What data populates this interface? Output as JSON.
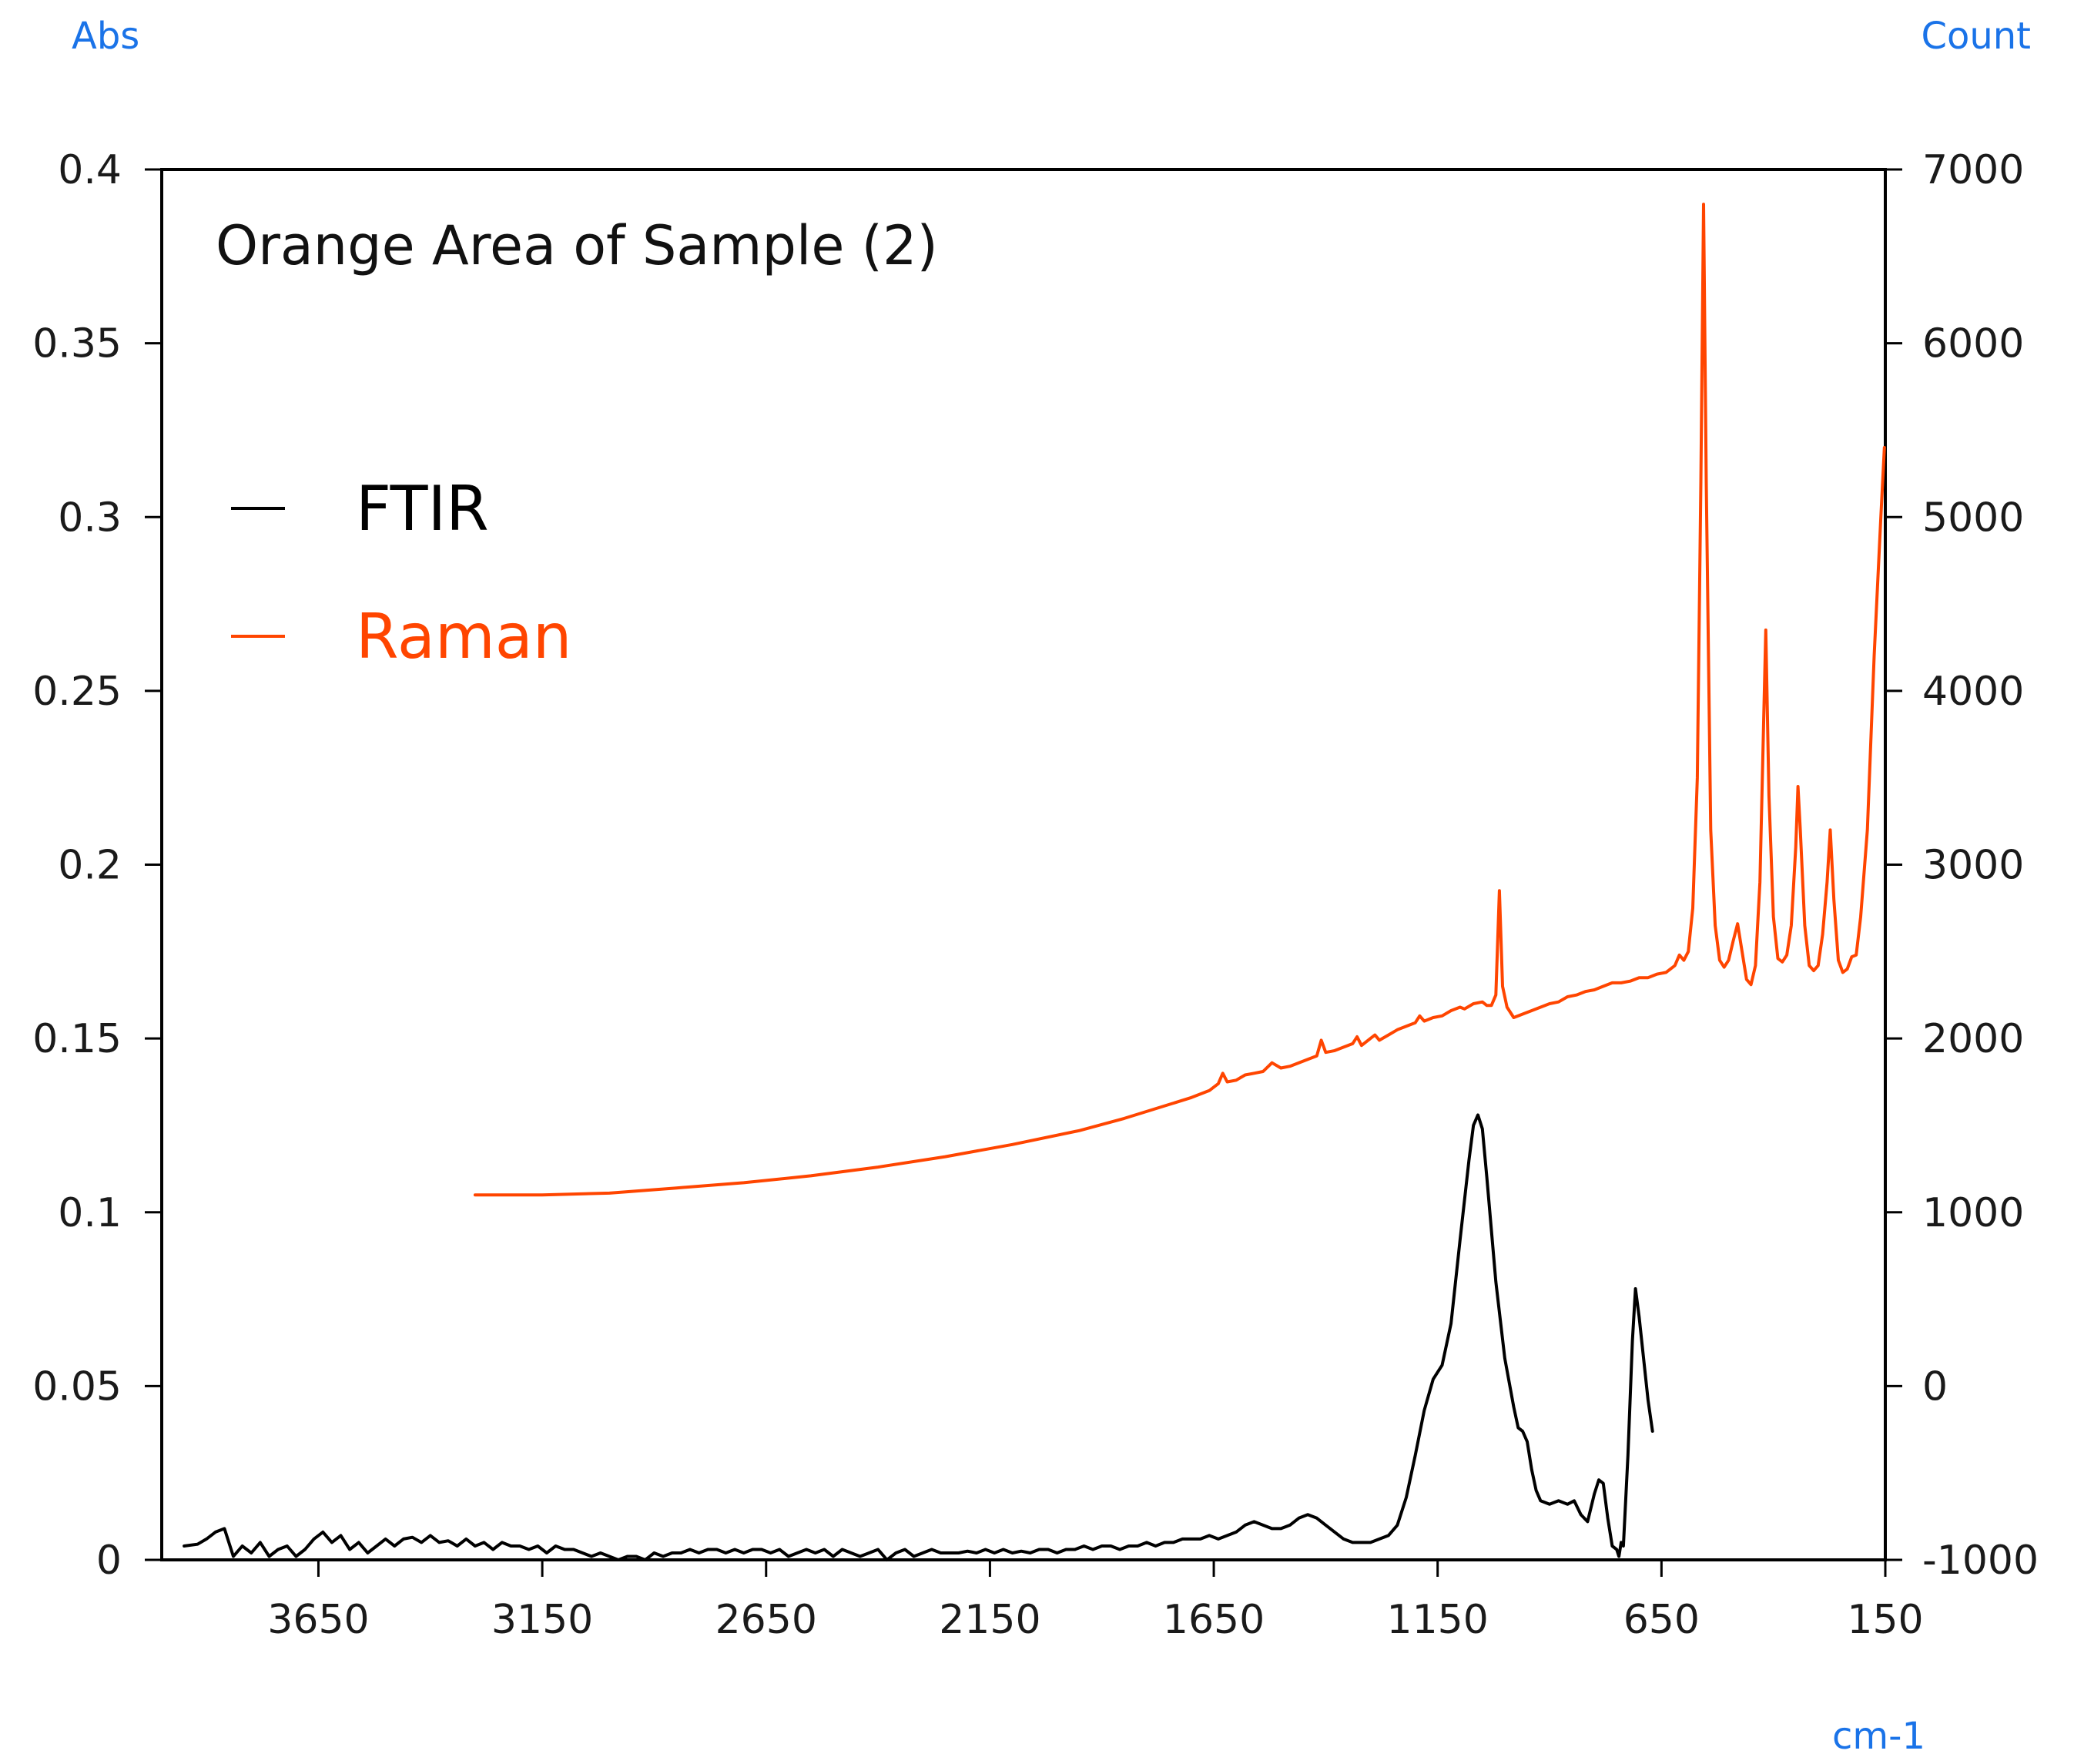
{
  "chart_data": {
    "type": "line",
    "title": "Orange Area of Sample (2)",
    "xlabel": "cm-1",
    "ylabel_left": "Abs",
    "ylabel_right": "Count",
    "x_range": [
      4000,
      150
    ],
    "x_reversed": true,
    "y_left_range": [
      0,
      0.4
    ],
    "y_right_range": [
      -1000,
      7000
    ],
    "x_ticks": [
      3650,
      3150,
      2650,
      2150,
      1650,
      1150,
      650,
      150
    ],
    "x_tick_labels": [
      "3650",
      "3150",
      "2650",
      "2150",
      "1650",
      "1150",
      "650",
      "150"
    ],
    "y_left_ticks": [
      0,
      0.05,
      0.1,
      0.15,
      0.2,
      0.25,
      0.3,
      0.35,
      0.4
    ],
    "y_left_tick_labels": [
      "0",
      "0.05",
      "0.1",
      "0.15",
      "0.2",
      "0.25",
      "0.3",
      "0.35",
      "0.4"
    ],
    "y_right_ticks": [
      -1000,
      0,
      1000,
      2000,
      3000,
      4000,
      5000,
      6000,
      7000
    ],
    "y_right_tick_labels": [
      "-1000",
      "0",
      "1000",
      "2000",
      "3000",
      "4000",
      "5000",
      "6000",
      "7000"
    ],
    "grid": false,
    "legend_position": "upper-left",
    "colors": {
      "ftir": "#000000",
      "raman": "#ff4500",
      "axis_units": "#1a73e8"
    },
    "series": [
      {
        "name": "FTIR",
        "axis": "left",
        "color": "#000000",
        "points": [
          [
            3950,
            0.004
          ],
          [
            3920,
            0.0045
          ],
          [
            3900,
            0.006
          ],
          [
            3880,
            0.008
          ],
          [
            3860,
            0.009
          ],
          [
            3840,
            0.001
          ],
          [
            3820,
            0.004
          ],
          [
            3800,
            0.002
          ],
          [
            3780,
            0.005
          ],
          [
            3760,
            0.001
          ],
          [
            3740,
            0.003
          ],
          [
            3720,
            0.004
          ],
          [
            3700,
            0.001
          ],
          [
            3680,
            0.003
          ],
          [
            3660,
            0.006
          ],
          [
            3640,
            0.008
          ],
          [
            3620,
            0.005
          ],
          [
            3600,
            0.007
          ],
          [
            3580,
            0.003
          ],
          [
            3560,
            0.005
          ],
          [
            3540,
            0.002
          ],
          [
            3520,
            0.004
          ],
          [
            3500,
            0.006
          ],
          [
            3480,
            0.004
          ],
          [
            3460,
            0.006
          ],
          [
            3440,
            0.0065
          ],
          [
            3420,
            0.005
          ],
          [
            3400,
            0.007
          ],
          [
            3380,
            0.005
          ],
          [
            3360,
            0.0055
          ],
          [
            3340,
            0.004
          ],
          [
            3320,
            0.006
          ],
          [
            3300,
            0.004
          ],
          [
            3280,
            0.005
          ],
          [
            3260,
            0.003
          ],
          [
            3240,
            0.005
          ],
          [
            3220,
            0.004
          ],
          [
            3200,
            0.004
          ],
          [
            3180,
            0.003
          ],
          [
            3160,
            0.004
          ],
          [
            3140,
            0.002
          ],
          [
            3120,
            0.004
          ],
          [
            3100,
            0.003
          ],
          [
            3080,
            0.003
          ],
          [
            3060,
            0.002
          ],
          [
            3040,
            0.001
          ],
          [
            3020,
            0.002
          ],
          [
            3000,
            0.001
          ],
          [
            2980,
            0.0
          ],
          [
            2960,
            0.001
          ],
          [
            2940,
            0.001
          ],
          [
            2920,
            0.0
          ],
          [
            2900,
            0.002
          ],
          [
            2880,
            0.001
          ],
          [
            2860,
            0.002
          ],
          [
            2840,
            0.002
          ],
          [
            2820,
            0.003
          ],
          [
            2800,
            0.002
          ],
          [
            2780,
            0.003
          ],
          [
            2760,
            0.003
          ],
          [
            2740,
            0.002
          ],
          [
            2720,
            0.003
          ],
          [
            2700,
            0.002
          ],
          [
            2680,
            0.003
          ],
          [
            2660,
            0.003
          ],
          [
            2640,
            0.002
          ],
          [
            2620,
            0.003
          ],
          [
            2600,
            0.001
          ],
          [
            2580,
            0.002
          ],
          [
            2560,
            0.003
          ],
          [
            2540,
            0.002
          ],
          [
            2520,
            0.003
          ],
          [
            2500,
            0.001
          ],
          [
            2480,
            0.003
          ],
          [
            2460,
            0.002
          ],
          [
            2440,
            0.001
          ],
          [
            2420,
            0.002
          ],
          [
            2400,
            0.003
          ],
          [
            2380,
            0.0
          ],
          [
            2360,
            0.002
          ],
          [
            2340,
            0.003
          ],
          [
            2320,
            0.001
          ],
          [
            2300,
            0.002
          ],
          [
            2280,
            0.003
          ],
          [
            2260,
            0.002
          ],
          [
            2240,
            0.002
          ],
          [
            2220,
            0.002
          ],
          [
            2200,
            0.0025
          ],
          [
            2180,
            0.002
          ],
          [
            2160,
            0.003
          ],
          [
            2140,
            0.002
          ],
          [
            2120,
            0.003
          ],
          [
            2100,
            0.002
          ],
          [
            2080,
            0.0025
          ],
          [
            2060,
            0.002
          ],
          [
            2040,
            0.003
          ],
          [
            2020,
            0.003
          ],
          [
            2000,
            0.002
          ],
          [
            1980,
            0.003
          ],
          [
            1960,
            0.003
          ],
          [
            1940,
            0.004
          ],
          [
            1920,
            0.003
          ],
          [
            1900,
            0.004
          ],
          [
            1880,
            0.004
          ],
          [
            1860,
            0.003
          ],
          [
            1840,
            0.004
          ],
          [
            1820,
            0.004
          ],
          [
            1800,
            0.005
          ],
          [
            1780,
            0.004
          ],
          [
            1760,
            0.005
          ],
          [
            1740,
            0.005
          ],
          [
            1720,
            0.006
          ],
          [
            1700,
            0.006
          ],
          [
            1680,
            0.006
          ],
          [
            1660,
            0.007
          ],
          [
            1640,
            0.006
          ],
          [
            1620,
            0.007
          ],
          [
            1600,
            0.008
          ],
          [
            1580,
            0.01
          ],
          [
            1560,
            0.011
          ],
          [
            1540,
            0.01
          ],
          [
            1520,
            0.009
          ],
          [
            1500,
            0.009
          ],
          [
            1480,
            0.01
          ],
          [
            1460,
            0.012
          ],
          [
            1440,
            0.013
          ],
          [
            1420,
            0.012
          ],
          [
            1400,
            0.01
          ],
          [
            1380,
            0.008
          ],
          [
            1360,
            0.006
          ],
          [
            1340,
            0.005
          ],
          [
            1320,
            0.005
          ],
          [
            1300,
            0.005
          ],
          [
            1280,
            0.006
          ],
          [
            1260,
            0.007
          ],
          [
            1240,
            0.01
          ],
          [
            1220,
            0.018
          ],
          [
            1200,
            0.03
          ],
          [
            1180,
            0.043
          ],
          [
            1160,
            0.052
          ],
          [
            1140,
            0.056
          ],
          [
            1120,
            0.068
          ],
          [
            1100,
            0.092
          ],
          [
            1080,
            0.115
          ],
          [
            1070,
            0.125
          ],
          [
            1060,
            0.128
          ],
          [
            1050,
            0.124
          ],
          [
            1040,
            0.11
          ],
          [
            1020,
            0.08
          ],
          [
            1000,
            0.058
          ],
          [
            980,
            0.044
          ],
          [
            970,
            0.038
          ],
          [
            960,
            0.037
          ],
          [
            950,
            0.034
          ],
          [
            940,
            0.026
          ],
          [
            930,
            0.02
          ],
          [
            920,
            0.017
          ],
          [
            900,
            0.016
          ],
          [
            880,
            0.017
          ],
          [
            860,
            0.016
          ],
          [
            845,
            0.017
          ],
          [
            830,
            0.013
          ],
          [
            815,
            0.011
          ],
          [
            800,
            0.019
          ],
          [
            790,
            0.023
          ],
          [
            780,
            0.022
          ],
          [
            770,
            0.012
          ],
          [
            760,
            0.004
          ],
          [
            750,
            0.003
          ],
          [
            745,
            0.001
          ],
          [
            740,
            0.005
          ],
          [
            735,
            0.004
          ],
          [
            725,
            0.03
          ],
          [
            715,
            0.063
          ],
          [
            708,
            0.078
          ],
          [
            700,
            0.07
          ],
          [
            690,
            0.058
          ],
          [
            680,
            0.046
          ],
          [
            670,
            0.037
          ]
        ]
      },
      {
        "name": "Raman",
        "axis": "right",
        "color": "#ff4500",
        "points": [
          [
            3300,
            1100
          ],
          [
            3150,
            1100
          ],
          [
            3000,
            1110
          ],
          [
            2850,
            1140
          ],
          [
            2700,
            1170
          ],
          [
            2550,
            1210
          ],
          [
            2400,
            1260
          ],
          [
            2250,
            1320
          ],
          [
            2100,
            1390
          ],
          [
            1950,
            1470
          ],
          [
            1850,
            1540
          ],
          [
            1750,
            1620
          ],
          [
            1700,
            1660
          ],
          [
            1680,
            1680
          ],
          [
            1660,
            1700
          ],
          [
            1640,
            1740
          ],
          [
            1630,
            1800
          ],
          [
            1620,
            1750
          ],
          [
            1600,
            1760
          ],
          [
            1580,
            1790
          ],
          [
            1560,
            1800
          ],
          [
            1540,
            1810
          ],
          [
            1520,
            1860
          ],
          [
            1500,
            1830
          ],
          [
            1480,
            1840
          ],
          [
            1460,
            1860
          ],
          [
            1440,
            1880
          ],
          [
            1420,
            1900
          ],
          [
            1410,
            1990
          ],
          [
            1400,
            1920
          ],
          [
            1380,
            1930
          ],
          [
            1360,
            1950
          ],
          [
            1340,
            1970
          ],
          [
            1330,
            2010
          ],
          [
            1320,
            1960
          ],
          [
            1300,
            2000
          ],
          [
            1290,
            2020
          ],
          [
            1280,
            1990
          ],
          [
            1260,
            2020
          ],
          [
            1240,
            2050
          ],
          [
            1220,
            2070
          ],
          [
            1200,
            2090
          ],
          [
            1190,
            2130
          ],
          [
            1180,
            2100
          ],
          [
            1160,
            2120
          ],
          [
            1140,
            2130
          ],
          [
            1120,
            2160
          ],
          [
            1100,
            2180
          ],
          [
            1090,
            2170
          ],
          [
            1070,
            2200
          ],
          [
            1050,
            2210
          ],
          [
            1040,
            2190
          ],
          [
            1030,
            2190
          ],
          [
            1020,
            2250
          ],
          [
            1012,
            2850
          ],
          [
            1005,
            2300
          ],
          [
            995,
            2180
          ],
          [
            980,
            2120
          ],
          [
            960,
            2140
          ],
          [
            940,
            2160
          ],
          [
            920,
            2180
          ],
          [
            900,
            2200
          ],
          [
            880,
            2210
          ],
          [
            860,
            2240
          ],
          [
            840,
            2250
          ],
          [
            820,
            2270
          ],
          [
            800,
            2280
          ],
          [
            780,
            2300
          ],
          [
            760,
            2320
          ],
          [
            740,
            2320
          ],
          [
            720,
            2330
          ],
          [
            700,
            2350
          ],
          [
            680,
            2350
          ],
          [
            660,
            2370
          ],
          [
            640,
            2380
          ],
          [
            620,
            2420
          ],
          [
            610,
            2480
          ],
          [
            600,
            2450
          ],
          [
            590,
            2500
          ],
          [
            580,
            2750
          ],
          [
            570,
            3500
          ],
          [
            562,
            5200
          ],
          [
            556,
            6800
          ],
          [
            550,
            5200
          ],
          [
            540,
            3200
          ],
          [
            530,
            2650
          ],
          [
            520,
            2450
          ],
          [
            510,
            2410
          ],
          [
            500,
            2450
          ],
          [
            490,
            2560
          ],
          [
            480,
            2660
          ],
          [
            470,
            2500
          ],
          [
            460,
            2340
          ],
          [
            450,
            2310
          ],
          [
            440,
            2420
          ],
          [
            430,
            2900
          ],
          [
            422,
            3800
          ],
          [
            417,
            4350
          ],
          [
            410,
            3400
          ],
          [
            400,
            2700
          ],
          [
            390,
            2460
          ],
          [
            380,
            2440
          ],
          [
            370,
            2480
          ],
          [
            360,
            2650
          ],
          [
            350,
            3100
          ],
          [
            345,
            3450
          ],
          [
            340,
            3200
          ],
          [
            330,
            2650
          ],
          [
            320,
            2420
          ],
          [
            310,
            2390
          ],
          [
            300,
            2420
          ],
          [
            290,
            2600
          ],
          [
            280,
            2900
          ],
          [
            273,
            3200
          ],
          [
            265,
            2800
          ],
          [
            255,
            2450
          ],
          [
            245,
            2380
          ],
          [
            235,
            2400
          ],
          [
            225,
            2470
          ],
          [
            215,
            2480
          ],
          [
            205,
            2700
          ],
          [
            190,
            3200
          ],
          [
            175,
            4200
          ],
          [
            160,
            5000
          ],
          [
            152,
            5400
          ]
        ]
      }
    ]
  }
}
